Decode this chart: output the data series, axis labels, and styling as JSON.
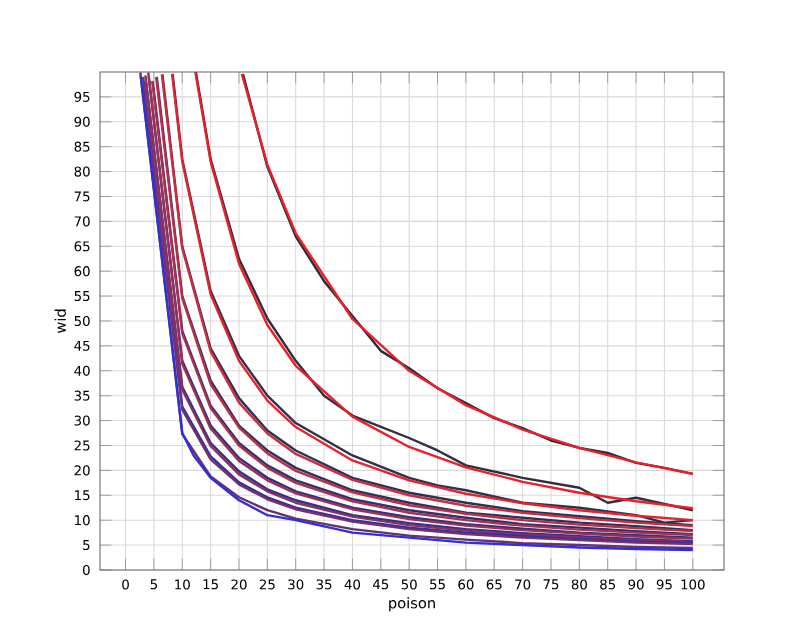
{
  "chart_data": {
    "type": "line",
    "xlabel": "poison",
    "ylabel": "wid",
    "xlim": [
      -4.5,
      105.5
    ],
    "ylim": [
      0,
      100
    ],
    "xticks": [
      0,
      5,
      10,
      15,
      20,
      25,
      30,
      35,
      40,
      45,
      50,
      55,
      60,
      65,
      70,
      75,
      80,
      85,
      90,
      95,
      100
    ],
    "yticks": [
      0,
      5,
      10,
      15,
      20,
      25,
      30,
      35,
      40,
      45,
      50,
      55,
      60,
      65,
      70,
      75,
      80,
      85,
      90,
      95
    ],
    "grid": true,
    "series": [
      {
        "color": "#2a2a35",
        "x": [
          20.7,
          25,
          30,
          35,
          40,
          45,
          50,
          55,
          60,
          65,
          70,
          75,
          80,
          85,
          90,
          95,
          100
        ],
        "values": [
          99.6,
          81,
          67,
          58,
          51,
          44,
          40.5,
          36.5,
          33.5,
          30.5,
          28.5,
          26,
          24.5,
          23.5,
          21.5,
          20.5,
          19.3
        ]
      },
      {
        "color": "#e8202a",
        "x": [
          20.5,
          25,
          30,
          40,
          50,
          60,
          70,
          80,
          90,
          100
        ],
        "values": [
          99.6,
          81.4,
          67.6,
          50.4,
          40,
          33.1,
          28.2,
          24.5,
          21.6,
          19.3
        ]
      },
      {
        "color": "#2e2e40",
        "x": [
          12.4,
          15,
          20,
          25,
          30,
          35,
          40,
          50,
          55,
          60,
          70,
          80,
          85,
          90,
          100
        ],
        "values": [
          100,
          82.5,
          62.5,
          50.5,
          42,
          35,
          31,
          26.5,
          24,
          21,
          18.5,
          16.5,
          13.5,
          14.5,
          12
        ]
      },
      {
        "color": "#e8202a",
        "x": [
          12.3,
          15,
          20,
          25,
          30,
          40,
          50,
          60,
          70,
          80,
          90,
          100
        ],
        "values": [
          100,
          82,
          61.5,
          49.2,
          41,
          30.8,
          24.7,
          20.6,
          17.7,
          15.5,
          13.8,
          12.4
        ]
      },
      {
        "color": "#30304a",
        "x": [
          8.3,
          10,
          15,
          20,
          25,
          30,
          40,
          50,
          55,
          60,
          70,
          80,
          90,
          95,
          100
        ],
        "values": [
          99.6,
          82.5,
          56,
          43,
          35,
          29.5,
          23,
          18.5,
          17,
          16,
          13.5,
          12.5,
          11,
          9.5,
          10
        ]
      },
      {
        "color": "#e02530",
        "x": [
          8.2,
          10,
          15,
          20,
          25,
          30,
          40,
          50,
          60,
          70,
          80,
          90,
          100
        ],
        "values": [
          99.6,
          82,
          55.3,
          42,
          34,
          28.7,
          22,
          18,
          15.3,
          13.4,
          12,
          10.9,
          10
        ]
      },
      {
        "color": "#303055",
        "x": [
          6.5,
          10,
          15,
          20,
          25,
          30,
          40,
          50,
          60,
          70,
          80,
          90,
          100
        ],
        "values": [
          99.5,
          65,
          44.5,
          34.5,
          28,
          24,
          18.5,
          15.5,
          13.5,
          11.8,
          10.8,
          9.8,
          9
        ]
      },
      {
        "color": "#c83040",
        "x": [
          6.4,
          10,
          15,
          20,
          25,
          30,
          40,
          50,
          60,
          70,
          80,
          90,
          100
        ],
        "values": [
          99.5,
          64.6,
          43.9,
          33.6,
          27.4,
          23.3,
          18.1,
          15,
          12.9,
          11.5,
          10.4,
          9.5,
          8.8
        ]
      },
      {
        "color": "#303060",
        "x": [
          5.5,
          10,
          15,
          20,
          25,
          30,
          40,
          50,
          60,
          70,
          80,
          90,
          100
        ],
        "values": [
          99,
          55,
          38,
          29,
          24,
          20.5,
          16,
          13.5,
          11.5,
          10.5,
          9.5,
          8.8,
          8
        ]
      },
      {
        "color": "#b83048",
        "x": [
          5.4,
          10,
          15,
          20,
          25,
          30,
          40,
          50,
          60,
          70,
          80,
          90,
          100
        ],
        "values": [
          98.9,
          54.6,
          37.3,
          28.6,
          23.4,
          19.9,
          15.6,
          13,
          11.3,
          10,
          9.1,
          8.4,
          7.8
        ]
      },
      {
        "color": "#30306e",
        "x": [
          4.8,
          10,
          15,
          20,
          25,
          30,
          40,
          50,
          60,
          70,
          80,
          90,
          100
        ],
        "values": [
          98,
          48,
          33,
          25.5,
          21,
          18,
          14.2,
          12,
          10.5,
          9.2,
          8.5,
          7.8,
          7.2
        ]
      },
      {
        "color": "#a83050",
        "x": [
          4.7,
          10,
          15,
          20,
          25,
          30,
          40,
          50,
          60,
          70,
          80,
          90,
          100
        ],
        "values": [
          98.2,
          47.5,
          32.5,
          25,
          20.5,
          17.5,
          13.8,
          11.5,
          10,
          8.9,
          8.1,
          7.5,
          7
        ]
      },
      {
        "color": "#30307c",
        "x": [
          4.1,
          10,
          15,
          20,
          25,
          30,
          40,
          50,
          60,
          70,
          80,
          90,
          100
        ],
        "values": [
          99,
          42,
          29,
          22.5,
          18.5,
          15.8,
          12.5,
          10.6,
          9.2,
          8.3,
          7.5,
          7,
          6.5
        ]
      },
      {
        "color": "#983058",
        "x": [
          4,
          10,
          15,
          20,
          25,
          30,
          40,
          50,
          60,
          70,
          80,
          90,
          100
        ],
        "values": [
          99.9,
          41.4,
          28.4,
          21.9,
          18,
          15.4,
          12.2,
          10.2,
          8.9,
          8,
          7.3,
          6.7,
          6.3
        ]
      },
      {
        "color": "#30308c",
        "x": [
          3.6,
          10,
          15,
          20,
          25,
          30,
          40,
          50,
          60,
          70,
          80,
          90,
          100
        ],
        "values": [
          98,
          36.8,
          25.5,
          19.8,
          16.2,
          14,
          11,
          9.4,
          8.2,
          7.4,
          6.8,
          6.2,
          5.8
        ]
      },
      {
        "color": "#883060",
        "x": [
          3.5,
          10,
          15,
          20,
          25,
          30,
          40,
          50,
          60,
          70,
          80,
          90,
          100
        ],
        "values": [
          99.3,
          36.2,
          24.9,
          19.2,
          15.8,
          13.5,
          10.7,
          9,
          7.9,
          7.1,
          6.5,
          6,
          5.6
        ]
      },
      {
        "color": "#3030a0",
        "x": [
          3.2,
          10,
          15,
          20,
          25,
          30,
          40,
          50,
          60,
          70,
          80,
          90,
          100
        ],
        "values": [
          97,
          32.8,
          22.8,
          17.6,
          14.6,
          12.5,
          10,
          8.5,
          7.5,
          6.8,
          6.2,
          5.7,
          5.4
        ]
      },
      {
        "color": "#783068",
        "x": [
          3.1,
          10,
          15,
          20,
          25,
          30,
          40,
          50,
          60,
          70,
          80,
          90,
          100
        ],
        "values": [
          99,
          32.2,
          22.2,
          17.2,
          14.2,
          12.2,
          9.7,
          8.2,
          7.2,
          6.5,
          6,
          5.5,
          5.2
        ]
      },
      {
        "color": "#683070",
        "x": [
          2.6,
          10,
          15,
          20,
          25,
          30,
          40,
          50,
          60,
          70,
          80,
          90,
          100
        ],
        "values": [
          99.9,
          27.3,
          18.8,
          14.6,
          12,
          10.3,
          8.2,
          6.9,
          6.1,
          5.4,
          5,
          4.6,
          4.4
        ]
      },
      {
        "color": "#3030d8",
        "x": [
          2.7,
          10,
          12,
          15,
          20,
          25,
          30,
          40,
          50,
          60,
          70,
          80,
          90,
          100
        ],
        "values": [
          99,
          27.5,
          23,
          18.5,
          14,
          11,
          10,
          7.5,
          6.5,
          5.5,
          5,
          4.5,
          4.2,
          4
        ]
      }
    ]
  }
}
